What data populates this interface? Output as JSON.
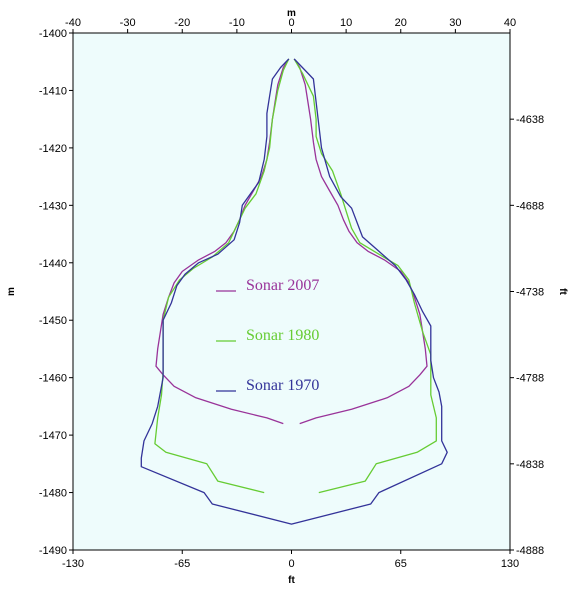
{
  "chart_data": {
    "type": "line",
    "title": "",
    "axes": {
      "top_label": "m",
      "bottom_label": "ft",
      "left_label": "m",
      "right_label": "ft",
      "top": {
        "lim": [
          -40,
          40
        ],
        "ticks": [
          -40,
          -30,
          -20,
          -10,
          0,
          10,
          20,
          30,
          40
        ]
      },
      "bottom": {
        "lim": [
          -130,
          130
        ],
        "ticks": [
          -130,
          -65,
          0,
          65,
          130
        ]
      },
      "left": {
        "lim": [
          -1490,
          -1400
        ],
        "ticks": [
          -1400,
          -1410,
          -1420,
          -1430,
          -1440,
          -1450,
          -1460,
          -1470,
          -1480,
          -1490
        ]
      },
      "right": {
        "lim": [
          -4888,
          -4588
        ],
        "ticks": [
          -4638,
          -4688,
          -4738,
          -4788,
          -4838,
          -4888
        ]
      }
    },
    "grid": false,
    "plot_background": "#eefcfc",
    "legend_position": "inside-center",
    "series": [
      {
        "name": "Sonar 2007",
        "color": "#993399",
        "points": [
          [
            0.5,
            -1404.5
          ],
          [
            1.5,
            -1406
          ],
          [
            2.5,
            -1409
          ],
          [
            3,
            -1412
          ],
          [
            3.5,
            -1415
          ],
          [
            4,
            -1419
          ],
          [
            4.5,
            -1422
          ],
          [
            5.5,
            -1425
          ],
          [
            7,
            -1427.5
          ],
          [
            8.5,
            -1430
          ],
          [
            9.5,
            -1432.5
          ],
          [
            10.5,
            -1434.5
          ],
          [
            12,
            -1436.5
          ],
          [
            14,
            -1438
          ],
          [
            17,
            -1439.5
          ],
          [
            20,
            -1441.5
          ],
          [
            21.5,
            -1443.5
          ],
          [
            22.5,
            -1446
          ],
          [
            23.5,
            -1449
          ],
          [
            24,
            -1452
          ],
          [
            24.5,
            -1455
          ],
          [
            24.8,
            -1458
          ],
          [
            23.5,
            -1459.5
          ],
          [
            21.5,
            -1461.5
          ],
          [
            17.5,
            -1463.5
          ],
          [
            11,
            -1465.5
          ],
          [
            4.5,
            -1467
          ],
          [
            1.5,
            -1468
          ],
          null,
          [
            -1.5,
            -1468
          ],
          [
            -4.5,
            -1467
          ],
          [
            -11,
            -1465.5
          ],
          [
            -17.5,
            -1463.5
          ],
          [
            -21.5,
            -1461.5
          ],
          [
            -23.5,
            -1459.5
          ],
          [
            -24.8,
            -1458
          ],
          [
            -24.5,
            -1455
          ],
          [
            -24,
            -1452
          ],
          [
            -23.5,
            -1449
          ],
          [
            -22.5,
            -1446
          ],
          [
            -21.5,
            -1443.5
          ],
          [
            -20,
            -1441.5
          ],
          [
            -17,
            -1439.5
          ],
          [
            -14,
            -1438
          ],
          [
            -12,
            -1436.5
          ],
          [
            -10.5,
            -1434.5
          ],
          [
            -9.5,
            -1432.5
          ],
          [
            -8.5,
            -1430
          ],
          [
            -7,
            -1427.5
          ],
          [
            -5.5,
            -1425
          ],
          [
            -4.5,
            -1422
          ],
          [
            -4,
            -1419
          ],
          [
            -3.5,
            -1415
          ],
          [
            -3,
            -1412
          ],
          [
            -2.5,
            -1409
          ],
          [
            -1.5,
            -1406
          ],
          [
            -0.5,
            -1404.5
          ]
        ]
      },
      {
        "name": "Sonar 1980",
        "color": "#66cc33",
        "points": [
          [
            0.5,
            -1404.5
          ],
          [
            2,
            -1407
          ],
          [
            4,
            -1411
          ],
          [
            4.5,
            -1415
          ],
          [
            4.5,
            -1418
          ],
          [
            5.5,
            -1421
          ],
          [
            7.5,
            -1424
          ],
          [
            9,
            -1428
          ],
          [
            10,
            -1431
          ],
          [
            11,
            -1434
          ],
          [
            12.5,
            -1436.5
          ],
          [
            16,
            -1438.5
          ],
          [
            19.5,
            -1440.5
          ],
          [
            21.5,
            -1443
          ],
          [
            22.5,
            -1447
          ],
          [
            24,
            -1452
          ],
          [
            25.5,
            -1456
          ],
          [
            25.5,
            -1460
          ],
          [
            25.5,
            -1463
          ],
          [
            26.5,
            -1467
          ],
          [
            26.5,
            -1471
          ],
          [
            23,
            -1473
          ],
          [
            15.5,
            -1475
          ],
          [
            13.5,
            -1478
          ],
          [
            5,
            -1480
          ],
          null,
          [
            -5,
            -1480
          ],
          [
            -13.5,
            -1478
          ],
          [
            -15.5,
            -1475
          ],
          [
            -23,
            -1473
          ],
          [
            -25,
            -1471.5
          ],
          [
            -24.5,
            -1467
          ],
          [
            -23.8,
            -1463
          ],
          [
            -23.5,
            -1459
          ],
          [
            -23.5,
            -1454
          ],
          [
            -23.5,
            -1450
          ],
          [
            -22.5,
            -1446
          ],
          [
            -20.5,
            -1443
          ],
          [
            -18,
            -1441
          ],
          [
            -14.5,
            -1439
          ],
          [
            -11.5,
            -1436.5
          ],
          [
            -10,
            -1433.5
          ],
          [
            -8.5,
            -1430.5
          ],
          [
            -6.5,
            -1428
          ],
          [
            -5,
            -1424
          ],
          [
            -4,
            -1420
          ],
          [
            -3.5,
            -1415
          ],
          [
            -2.5,
            -1410
          ],
          [
            -1.5,
            -1406.5
          ],
          [
            -0.5,
            -1404.5
          ]
        ]
      },
      {
        "name": "Sonar 1970",
        "color": "#333399",
        "points": [
          [
            0.5,
            -1404.5
          ],
          [
            2,
            -1406
          ],
          [
            4,
            -1408
          ],
          [
            4.5,
            -1412
          ],
          [
            5,
            -1416
          ],
          [
            5.5,
            -1420
          ],
          [
            7,
            -1425
          ],
          [
            9,
            -1428.5
          ],
          [
            11,
            -1430.5
          ],
          [
            12,
            -1433
          ],
          [
            13,
            -1435.5
          ],
          [
            16,
            -1438
          ],
          [
            19,
            -1440.5
          ],
          [
            21,
            -1443
          ],
          [
            22.5,
            -1445.5
          ],
          [
            24,
            -1448.5
          ],
          [
            25.5,
            -1451
          ],
          [
            25.5,
            -1454
          ],
          [
            25.5,
            -1457
          ],
          [
            26,
            -1460
          ],
          [
            27,
            -1462.5
          ],
          [
            27.5,
            -1465
          ],
          [
            27.5,
            -1468
          ],
          [
            27.5,
            -1471
          ],
          [
            28.5,
            -1473
          ],
          [
            27.5,
            -1475
          ],
          [
            16,
            -1480
          ],
          [
            14.5,
            -1482
          ],
          [
            0,
            -1485.5
          ],
          [
            -14.5,
            -1482
          ],
          [
            -16,
            -1480
          ],
          [
            -27.5,
            -1475.5
          ],
          [
            -27.5,
            -1474
          ],
          [
            -27,
            -1471
          ],
          [
            -25.5,
            -1468
          ],
          [
            -24.5,
            -1465
          ],
          [
            -23.5,
            -1460
          ],
          [
            -23.5,
            -1457
          ],
          [
            -23.5,
            -1453
          ],
          [
            -23.5,
            -1450
          ],
          [
            -22,
            -1447
          ],
          [
            -21,
            -1444
          ],
          [
            -19.5,
            -1442
          ],
          [
            -17,
            -1440
          ],
          [
            -13.5,
            -1438.5
          ],
          [
            -10.5,
            -1436
          ],
          [
            -9.5,
            -1433
          ],
          [
            -9,
            -1430
          ],
          [
            -7.5,
            -1428
          ],
          [
            -6,
            -1426
          ],
          [
            -5,
            -1422
          ],
          [
            -4.5,
            -1418
          ],
          [
            -4.5,
            -1414
          ],
          [
            -4,
            -1411
          ],
          [
            -3.5,
            -1408
          ],
          [
            -2,
            -1406
          ],
          [
            -0.5,
            -1404.5
          ]
        ]
      }
    ]
  }
}
